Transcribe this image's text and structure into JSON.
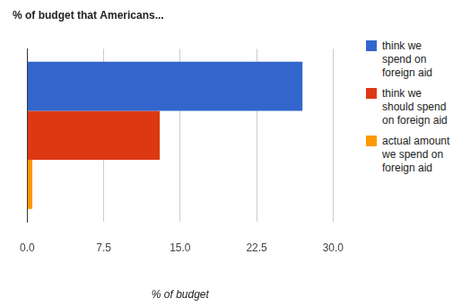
{
  "chart_data": {
    "type": "bar",
    "orientation": "horizontal",
    "title": "% of budget that Americans...",
    "xlabel": "% of budget",
    "categories": [
      null
    ],
    "series": [
      {
        "name": "think we spend on foreign aid",
        "color": "#3366cc",
        "values": [
          27
        ]
      },
      {
        "name": "think we should spend on foreign aid",
        "color": "#dc3912",
        "values": [
          13
        ]
      },
      {
        "name": "actual amount we spend on foreign aid",
        "color": "#ff9900",
        "values": [
          0.5
        ]
      }
    ],
    "xlim": [
      0,
      30
    ],
    "xticks": [
      {
        "value": 0,
        "label": "0.0"
      },
      7.5,
      {
        "value": 15,
        "label": "15.0"
      },
      22.5,
      {
        "value": 30,
        "label": "30.0"
      }
    ],
    "grid": true,
    "legend": "right"
  }
}
